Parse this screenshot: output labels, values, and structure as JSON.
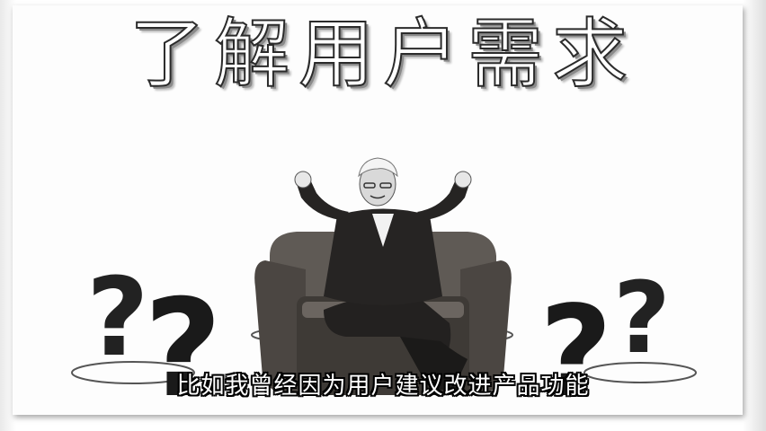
{
  "slide": {
    "title": "了解用户需求",
    "subtitle": "比如我曾经因为用户建议改进产品功能"
  },
  "colors": {
    "background": "#ffffff",
    "ink": "#1e1e1e",
    "shadow": "#8a8a8a"
  }
}
